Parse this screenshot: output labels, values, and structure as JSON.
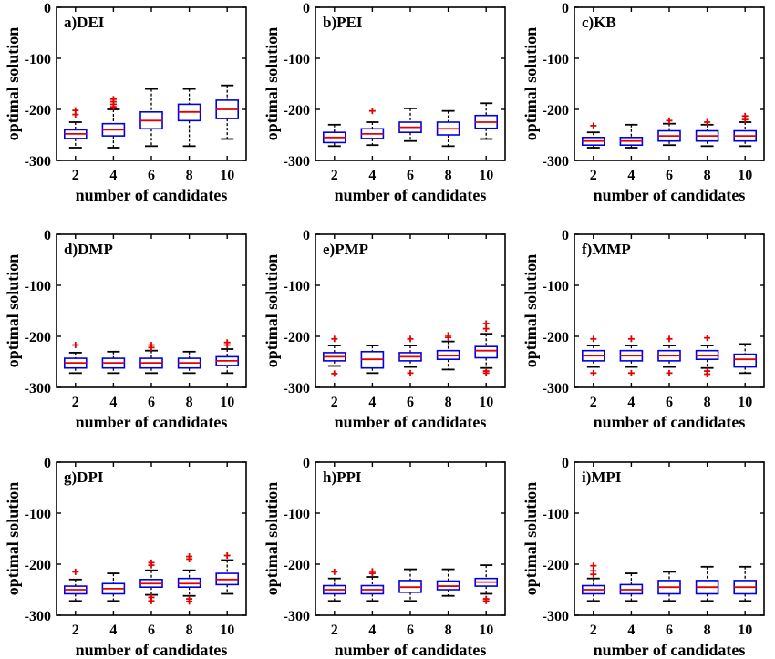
{
  "chart_data": [
    {
      "type": "box",
      "title": "a)DEI",
      "xlabel": "number of candidates",
      "ylabel": "optimal solution",
      "categories": [
        "2",
        "4",
        "6",
        "8",
        "10"
      ],
      "ylim": [
        -300,
        0
      ],
      "yticks": [
        0,
        -100,
        -200,
        -300
      ],
      "boxes": [
        {
          "whisker_low": -275,
          "q1": -257,
          "median": -248,
          "q3": -240,
          "whisker_high": -225,
          "outliers": [
            -210,
            -202
          ]
        },
        {
          "whisker_low": -275,
          "q1": -252,
          "median": -240,
          "q3": -228,
          "whisker_high": -200,
          "outliers": [
            -195,
            -190,
            -185,
            -180
          ]
        },
        {
          "whisker_low": -272,
          "q1": -238,
          "median": -222,
          "q3": -205,
          "whisker_high": -160,
          "outliers": []
        },
        {
          "whisker_low": -272,
          "q1": -222,
          "median": -205,
          "q3": -190,
          "whisker_high": -160,
          "outliers": []
        },
        {
          "whisker_low": -258,
          "q1": -218,
          "median": -200,
          "q3": -182,
          "whisker_high": -153,
          "outliers": []
        }
      ]
    },
    {
      "type": "box",
      "title": "b)PEI",
      "xlabel": "number of candidates",
      "ylabel": "optimal solution",
      "categories": [
        "2",
        "4",
        "6",
        "8",
        "10"
      ],
      "ylim": [
        -300,
        0
      ],
      "yticks": [
        0,
        -100,
        -200,
        -300
      ],
      "boxes": [
        {
          "whisker_low": -272,
          "q1": -265,
          "median": -255,
          "q3": -245,
          "whisker_high": -230,
          "outliers": []
        },
        {
          "whisker_low": -270,
          "q1": -257,
          "median": -248,
          "q3": -238,
          "whisker_high": -225,
          "outliers": [
            -203
          ]
        },
        {
          "whisker_low": -262,
          "q1": -245,
          "median": -235,
          "q3": -225,
          "whisker_high": -198,
          "outliers": []
        },
        {
          "whisker_low": -272,
          "q1": -250,
          "median": -238,
          "q3": -225,
          "whisker_high": -203,
          "outliers": []
        },
        {
          "whisker_low": -258,
          "q1": -237,
          "median": -225,
          "q3": -212,
          "whisker_high": -188,
          "outliers": []
        }
      ]
    },
    {
      "type": "box",
      "title": "c)KB",
      "xlabel": "number of candidates",
      "ylabel": "optimal solution",
      "categories": [
        "2",
        "4",
        "6",
        "8",
        "10"
      ],
      "ylim": [
        -300,
        0
      ],
      "yticks": [
        0,
        -100,
        -200,
        -300
      ],
      "boxes": [
        {
          "whisker_low": -275,
          "q1": -270,
          "median": -262,
          "q3": -255,
          "whisker_high": -245,
          "outliers": [
            -232
          ]
        },
        {
          "whisker_low": -275,
          "q1": -270,
          "median": -262,
          "q3": -255,
          "whisker_high": -230,
          "outliers": []
        },
        {
          "whisker_low": -270,
          "q1": -262,
          "median": -252,
          "q3": -242,
          "whisker_high": -228,
          "outliers": [
            -222
          ]
        },
        {
          "whisker_low": -272,
          "q1": -262,
          "median": -252,
          "q3": -242,
          "whisker_high": -230,
          "outliers": [
            -225
          ]
        },
        {
          "whisker_low": -272,
          "q1": -262,
          "median": -252,
          "q3": -242,
          "whisker_high": -225,
          "outliers": [
            -220,
            -213
          ]
        }
      ]
    },
    {
      "type": "box",
      "title": "d)DMP",
      "xlabel": "number of candidates",
      "ylabel": "optimal solution",
      "categories": [
        "2",
        "4",
        "6",
        "8",
        "10"
      ],
      "ylim": [
        -300,
        0
      ],
      "yticks": [
        0,
        -100,
        -200,
        -300
      ],
      "boxes": [
        {
          "whisker_low": -272,
          "q1": -262,
          "median": -252,
          "q3": -243,
          "whisker_high": -232,
          "outliers": [
            -217
          ]
        },
        {
          "whisker_low": -272,
          "q1": -262,
          "median": -252,
          "q3": -243,
          "whisker_high": -230,
          "outliers": []
        },
        {
          "whisker_low": -272,
          "q1": -262,
          "median": -252,
          "q3": -243,
          "whisker_high": -228,
          "outliers": [
            -222,
            -217
          ]
        },
        {
          "whisker_low": -272,
          "q1": -262,
          "median": -252,
          "q3": -243,
          "whisker_high": -230,
          "outliers": []
        },
        {
          "whisker_low": -272,
          "q1": -257,
          "median": -248,
          "q3": -240,
          "whisker_high": -225,
          "outliers": [
            -217,
            -212
          ]
        }
      ]
    },
    {
      "type": "box",
      "title": "e)PMP",
      "xlabel": "number of candidates",
      "ylabel": "optimal solution",
      "categories": [
        "2",
        "4",
        "6",
        "8",
        "10"
      ],
      "ylim": [
        -300,
        0
      ],
      "yticks": [
        0,
        -100,
        -200,
        -300
      ],
      "boxes": [
        {
          "whisker_low": -258,
          "q1": -248,
          "median": -240,
          "q3": -232,
          "whisker_high": -218,
          "outliers": [
            -205,
            -273
          ]
        },
        {
          "whisker_low": -272,
          "q1": -262,
          "median": -245,
          "q3": -230,
          "whisker_high": -218,
          "outliers": []
        },
        {
          "whisker_low": -260,
          "q1": -248,
          "median": -240,
          "q3": -232,
          "whisker_high": -218,
          "outliers": [
            -205,
            -272
          ]
        },
        {
          "whisker_low": -265,
          "q1": -245,
          "median": -238,
          "q3": -228,
          "whisker_high": -210,
          "outliers": [
            -198,
            -202
          ]
        },
        {
          "whisker_low": -262,
          "q1": -242,
          "median": -228,
          "q3": -220,
          "whisker_high": -195,
          "outliers": [
            -185,
            -175,
            -268,
            -272
          ]
        }
      ]
    },
    {
      "type": "box",
      "title": "f)MMP",
      "xlabel": "number of candidates",
      "ylabel": "optimal solution",
      "categories": [
        "2",
        "4",
        "6",
        "8",
        "10"
      ],
      "ylim": [
        -300,
        0
      ],
      "yticks": [
        0,
        -100,
        -200,
        -300
      ],
      "boxes": [
        {
          "whisker_low": -260,
          "q1": -248,
          "median": -238,
          "q3": -228,
          "whisker_high": -218,
          "outliers": [
            -205,
            -272
          ]
        },
        {
          "whisker_low": -260,
          "q1": -248,
          "median": -238,
          "q3": -228,
          "whisker_high": -218,
          "outliers": [
            -205,
            -272
          ]
        },
        {
          "whisker_low": -260,
          "q1": -248,
          "median": -238,
          "q3": -228,
          "whisker_high": -218,
          "outliers": [
            -205,
            -272
          ]
        },
        {
          "whisker_low": -262,
          "q1": -245,
          "median": -238,
          "q3": -228,
          "whisker_high": -218,
          "outliers": [
            -203,
            -268,
            -274
          ]
        },
        {
          "whisker_low": -272,
          "q1": -260,
          "median": -245,
          "q3": -235,
          "whisker_high": -215,
          "outliers": []
        }
      ]
    },
    {
      "type": "box",
      "title": "g)DPI",
      "xlabel": "number of candidates",
      "ylabel": "optimal solution",
      "categories": [
        "2",
        "4",
        "6",
        "8",
        "10"
      ],
      "ylim": [
        -300,
        0
      ],
      "yticks": [
        0,
        -100,
        -200,
        -300
      ],
      "boxes": [
        {
          "whisker_low": -272,
          "q1": -258,
          "median": -250,
          "q3": -243,
          "whisker_high": -230,
          "outliers": [
            -215
          ]
        },
        {
          "whisker_low": -272,
          "q1": -258,
          "median": -248,
          "q3": -238,
          "whisker_high": -218,
          "outliers": []
        },
        {
          "whisker_low": -260,
          "q1": -245,
          "median": -238,
          "q3": -230,
          "whisker_high": -212,
          "outliers": [
            -202,
            -197,
            -265,
            -272
          ]
        },
        {
          "whisker_low": -262,
          "q1": -245,
          "median": -238,
          "q3": -228,
          "whisker_high": -212,
          "outliers": [
            -190,
            -185,
            -268,
            -273
          ]
        },
        {
          "whisker_low": -258,
          "q1": -240,
          "median": -230,
          "q3": -218,
          "whisker_high": -192,
          "outliers": [
            -183
          ]
        }
      ]
    },
    {
      "type": "box",
      "title": "h)PPI",
      "xlabel": "number of candidates",
      "ylabel": "optimal solution",
      "categories": [
        "2",
        "4",
        "6",
        "8",
        "10"
      ],
      "ylim": [
        -300,
        0
      ],
      "yticks": [
        0,
        -100,
        -200,
        -300
      ],
      "boxes": [
        {
          "whisker_low": -272,
          "q1": -258,
          "median": -250,
          "q3": -242,
          "whisker_high": -228,
          "outliers": [
            -215
          ]
        },
        {
          "whisker_low": -272,
          "q1": -258,
          "median": -250,
          "q3": -242,
          "whisker_high": -225,
          "outliers": [
            -218,
            -214
          ]
        },
        {
          "whisker_low": -272,
          "q1": -255,
          "median": -245,
          "q3": -232,
          "whisker_high": -210,
          "outliers": []
        },
        {
          "whisker_low": -262,
          "q1": -250,
          "median": -243,
          "q3": -233,
          "whisker_high": -210,
          "outliers": []
        },
        {
          "whisker_low": -258,
          "q1": -243,
          "median": -235,
          "q3": -228,
          "whisker_high": -202,
          "outliers": [
            -268,
            -272
          ]
        }
      ]
    },
    {
      "type": "box",
      "title": "i)MPI",
      "xlabel": "number of candidates",
      "ylabel": "optimal solution",
      "categories": [
        "2",
        "4",
        "6",
        "8",
        "10"
      ],
      "ylim": [
        -300,
        0
      ],
      "yticks": [
        0,
        -100,
        -200,
        -300
      ],
      "boxes": [
        {
          "whisker_low": -272,
          "q1": -258,
          "median": -250,
          "q3": -242,
          "whisker_high": -228,
          "outliers": [
            -220,
            -213,
            -203
          ]
        },
        {
          "whisker_low": -272,
          "q1": -258,
          "median": -250,
          "q3": -240,
          "whisker_high": -218,
          "outliers": []
        },
        {
          "whisker_low": -272,
          "q1": -258,
          "median": -245,
          "q3": -232,
          "whisker_high": -215,
          "outliers": []
        },
        {
          "whisker_low": -272,
          "q1": -258,
          "median": -245,
          "q3": -232,
          "whisker_high": -205,
          "outliers": []
        },
        {
          "whisker_low": -272,
          "q1": -258,
          "median": -245,
          "q3": -232,
          "whisker_high": -205,
          "outliers": []
        }
      ]
    }
  ],
  "colors": {
    "box": "#0000e6",
    "median": "#e60000",
    "outlier": "#e60000",
    "whisker": "#000000"
  }
}
